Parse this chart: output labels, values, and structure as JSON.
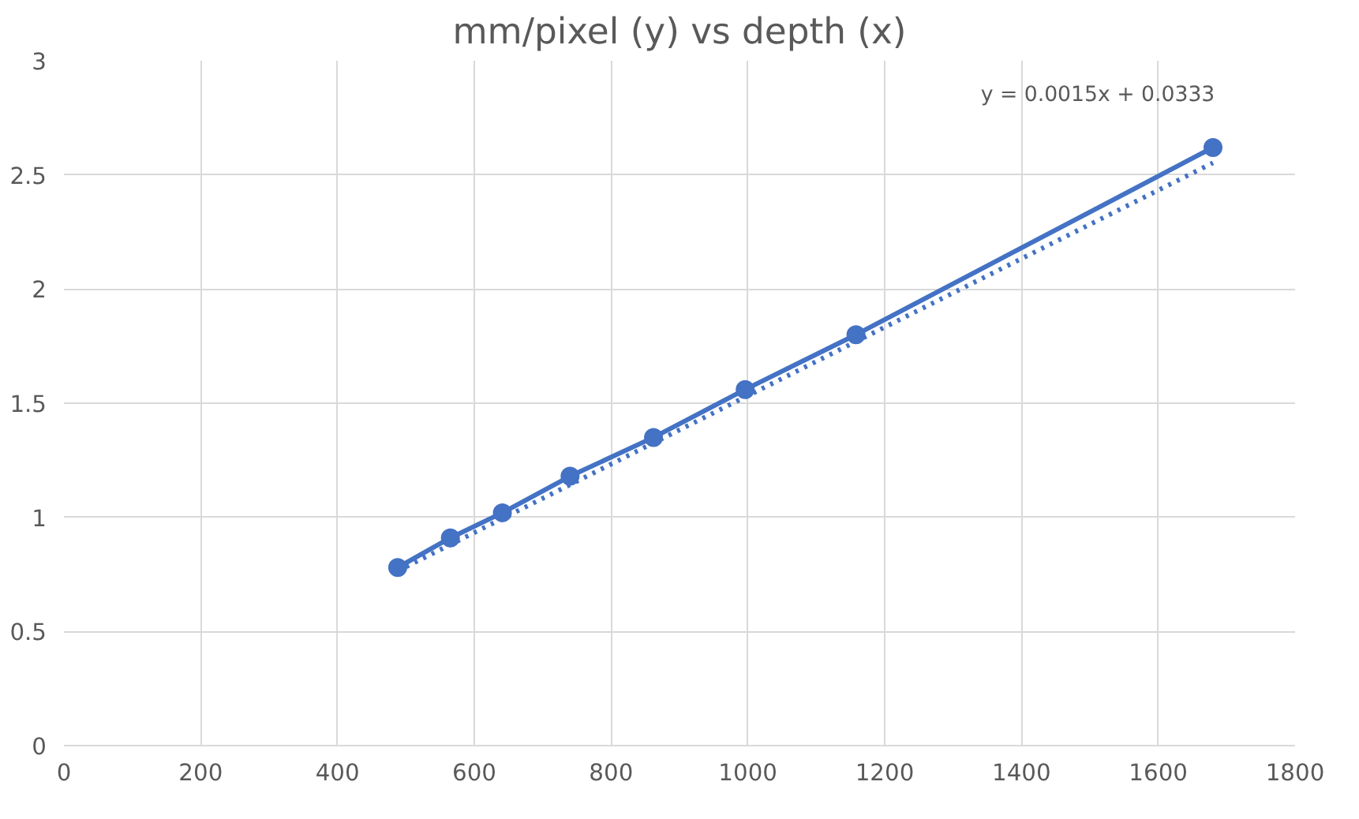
{
  "chart_data": {
    "type": "line",
    "title": "mm/pixel (y) vs depth (x)",
    "marker": "circle",
    "grid": true,
    "xlim": [
      0,
      1800
    ],
    "xticks": [
      0,
      200,
      400,
      600,
      800,
      1000,
      1200,
      1400,
      1600,
      1800
    ],
    "ylim": [
      0,
      3
    ],
    "yticks": [
      0,
      0.5,
      1,
      1.5,
      2,
      2.5,
      3
    ],
    "series": [
      {
        "color": "#4472c4",
        "x": [
          488,
          565,
          641,
          740,
          862,
          996,
          1158,
          1680
        ],
        "values": [
          0.78,
          0.91,
          1.02,
          1.18,
          1.35,
          1.56,
          1.8,
          2.62
        ]
      },
      {
        "type": "line",
        "line_style": "dotted",
        "marker": "none",
        "color": "#4472c4",
        "x": [
          488,
          1680
        ],
        "values": [
          0.765,
          2.553
        ]
      }
    ],
    "annotations": [
      "y = 0.0015x + 0.0333"
    ]
  }
}
